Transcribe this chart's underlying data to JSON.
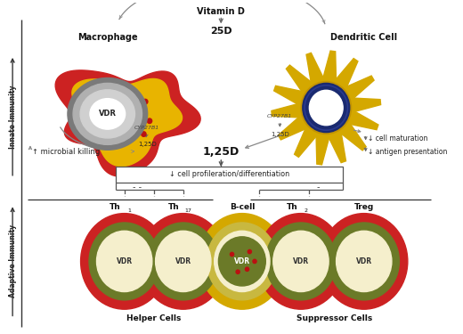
{
  "bg_color": "#ffffff",
  "colors": {
    "red": "#cc2222",
    "yellow": "#e8b400",
    "gold": "#d4a800",
    "gold_dark": "#c49500",
    "gray_outer": "#7a7a7a",
    "gray_mid": "#b0b0b0",
    "gray_light": "#d0d0d0",
    "white": "#ffffff",
    "cream": "#f5efcc",
    "olive": "#6b7a28",
    "dark_blue": "#1a2a70",
    "arrow_col": "#888888",
    "text_dark": "#111111",
    "dot_red": "#bb1111"
  },
  "labels": {
    "vitamin_d": "Vitamin D",
    "25d": "25D",
    "125d": "1,25D",
    "cyp_left": "CYP27B1",
    "cyp_right": "CYP27B1",
    "macrophage": "Macrophage",
    "dendritic": "Dendritic Cell",
    "microbial": "↑ microbial killing",
    "cell_mat": "↓ cell maturation",
    "antigen": "↓ antigen presentation",
    "cell_prolif": "↓ cell profileration/differentiation",
    "innate": "Innate Immunity",
    "adaptive": "Adaptive Immunity",
    "vdr": "VDR",
    "helper": "Helper Cells",
    "suppressor": "Suppressor Cells"
  }
}
